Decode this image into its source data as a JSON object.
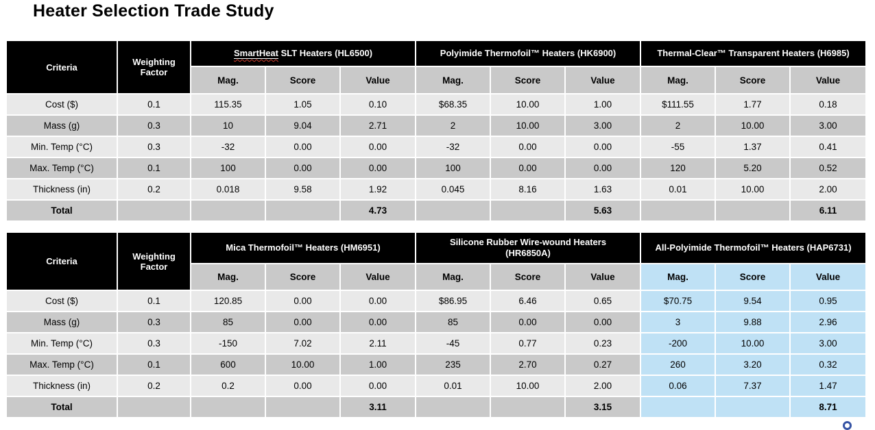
{
  "title": "Heater Selection Trade Study",
  "colors": {
    "header_bg": "#000000",
    "header_text": "#ffffff",
    "subheader_bg": "#c9c9c9",
    "row_light": "#e9e9e9",
    "row_dark": "#c9c9c9",
    "highlight_blue": "#bfe1f5",
    "spellcheck_red": "#d8402f",
    "corner_circle_blue": "#3553a4"
  },
  "tables": [
    {
      "criteria_header": "Criteria",
      "weighting_header": "Weighting Factor",
      "subheaders": [
        "Mag.",
        "Score",
        "Value"
      ],
      "groups": [
        {
          "name": "SmartHeat SLT Heaters (HL6500)",
          "squiggle_word": "SmartHeat",
          "name_rest": " SLT Heaters (HL6500)",
          "highlight": false
        },
        {
          "name": "Polyimide Thermofoil™ Heaters (HK6900)",
          "highlight": false
        },
        {
          "name": "Thermal-Clear™ Transparent Heaters (H6985)",
          "highlight": false
        }
      ],
      "rows": [
        {
          "criteria": "Cost ($)",
          "weight": "0.1",
          "cells": [
            [
              "115.35",
              "1.05",
              "0.10"
            ],
            [
              "$68.35",
              "10.00",
              "1.00"
            ],
            [
              "$111.55",
              "1.77",
              "0.18"
            ]
          ]
        },
        {
          "criteria": "Mass (g)",
          "weight": "0.3",
          "cells": [
            [
              "10",
              "9.04",
              "2.71"
            ],
            [
              "2",
              "10.00",
              "3.00"
            ],
            [
              "2",
              "10.00",
              "3.00"
            ]
          ]
        },
        {
          "criteria": "Min. Temp (°C)",
          "weight": "0.3",
          "cells": [
            [
              "-32",
              "0.00",
              "0.00"
            ],
            [
              "-32",
              "0.00",
              "0.00"
            ],
            [
              "-55",
              "1.37",
              "0.41"
            ]
          ]
        },
        {
          "criteria": "Max. Temp (°C)",
          "weight": "0.1",
          "cells": [
            [
              "100",
              "0.00",
              "0.00"
            ],
            [
              "100",
              "0.00",
              "0.00"
            ],
            [
              "120",
              "5.20",
              "0.52"
            ]
          ]
        },
        {
          "criteria": "Thickness (in)",
          "weight": "0.2",
          "cells": [
            [
              "0.018",
              "9.58",
              "1.92"
            ],
            [
              "0.045",
              "8.16",
              "1.63"
            ],
            [
              "0.01",
              "10.00",
              "2.00"
            ]
          ]
        }
      ],
      "total": {
        "label": "Total",
        "values": [
          "4.73",
          "5.63",
          "6.11"
        ]
      }
    },
    {
      "criteria_header": "Criteria",
      "weighting_header": "Weighting Factor",
      "subheaders": [
        "Mag.",
        "Score",
        "Value"
      ],
      "groups": [
        {
          "name": "Mica Thermofoil™ Heaters (HM6951)",
          "highlight": false
        },
        {
          "name": "Silicone Rubber Wire-wound Heaters\n(HR6850A)",
          "highlight": false
        },
        {
          "name": "All-Polyimide Thermofoil™ Heaters (HAP6731)",
          "highlight": true
        }
      ],
      "rows": [
        {
          "criteria": "Cost ($)",
          "weight": "0.1",
          "cells": [
            [
              "120.85",
              "0.00",
              "0.00"
            ],
            [
              "$86.95",
              "6.46",
              "0.65"
            ],
            [
              "$70.75",
              "9.54",
              "0.95"
            ]
          ]
        },
        {
          "criteria": "Mass (g)",
          "weight": "0.3",
          "cells": [
            [
              "85",
              "0.00",
              "0.00"
            ],
            [
              "85",
              "0.00",
              "0.00"
            ],
            [
              "3",
              "9.88",
              "2.96"
            ]
          ]
        },
        {
          "criteria": "Min. Temp (°C)",
          "weight": "0.3",
          "cells": [
            [
              "-150",
              "7.02",
              "2.11"
            ],
            [
              "-45",
              "0.77",
              "0.23"
            ],
            [
              "-200",
              "10.00",
              "3.00"
            ]
          ]
        },
        {
          "criteria": "Max. Temp (°C)",
          "weight": "0.1",
          "cells": [
            [
              "600",
              "10.00",
              "1.00"
            ],
            [
              "235",
              "2.70",
              "0.27"
            ],
            [
              "260",
              "3.20",
              "0.32"
            ]
          ]
        },
        {
          "criteria": "Thickness (in)",
          "weight": "0.2",
          "cells": [
            [
              "0.2",
              "0.00",
              "0.00"
            ],
            [
              "0.01",
              "10.00",
              "2.00"
            ],
            [
              "0.06",
              "7.37",
              "1.47"
            ]
          ]
        }
      ],
      "total": {
        "label": "Total",
        "values": [
          "3.11",
          "3.15",
          "8.71"
        ]
      }
    }
  ]
}
